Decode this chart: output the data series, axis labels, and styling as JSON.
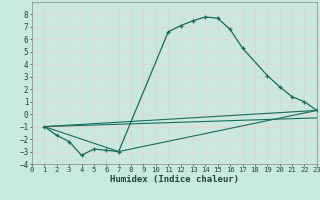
{
  "xlabel": "Humidex (Indice chaleur)",
  "xlim": [
    0,
    23
  ],
  "ylim": [
    -4,
    9
  ],
  "yticks": [
    -4,
    -3,
    -2,
    -1,
    0,
    1,
    2,
    3,
    4,
    5,
    6,
    7,
    8
  ],
  "xticks": [
    0,
    1,
    2,
    3,
    4,
    5,
    6,
    7,
    8,
    9,
    10,
    11,
    12,
    13,
    14,
    15,
    16,
    17,
    18,
    19,
    20,
    21,
    22,
    23
  ],
  "bg_color": "#c8e8e0",
  "line_color": "#1a6b5a",
  "grid_color": "#e8d0d0",
  "series_main": {
    "x": [
      1,
      2,
      3,
      4,
      5,
      6,
      7,
      11,
      12,
      13,
      14,
      15,
      16,
      17,
      19,
      20,
      21,
      22,
      23
    ],
    "y": [
      -1.0,
      -1.7,
      -2.2,
      -3.3,
      -2.8,
      -2.9,
      -3.0,
      6.6,
      7.1,
      7.5,
      7.8,
      7.7,
      6.8,
      5.3,
      3.1,
      2.2,
      1.4,
      1.0,
      0.3
    ]
  },
  "series_lines": [
    {
      "x": [
        1,
        7,
        23
      ],
      "y": [
        -1.0,
        -3.0,
        0.3
      ]
    },
    {
      "x": [
        1,
        23
      ],
      "y": [
        -1.0,
        0.3
      ]
    },
    {
      "x": [
        1,
        23
      ],
      "y": [
        -1.0,
        -0.3
      ]
    }
  ]
}
